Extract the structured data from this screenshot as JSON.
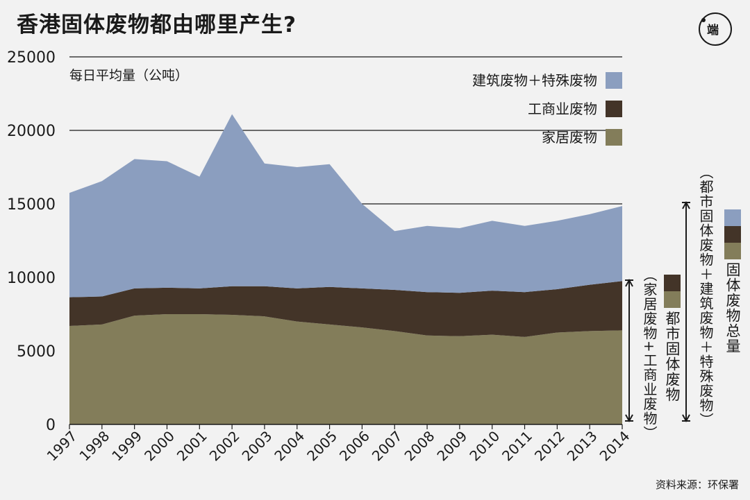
{
  "title": "香港固体废物都由哪里产生?",
  "logo_text": "端",
  "source": "资料来源：环保署",
  "colors": {
    "construction": "#8b9ebf",
    "industrial": "#433428",
    "household": "#837d5a",
    "background": "#f2f2f2",
    "text": "#1a1a1a"
  },
  "chart_data": {
    "type": "area",
    "stacked": true,
    "ylabel": "每日平均量（公吨）",
    "ylim": [
      0,
      25000
    ],
    "yticks": [
      "0",
      "5000",
      "10000",
      "15000",
      "20000",
      "25000"
    ],
    "x": [
      "1997",
      "1998",
      "1999",
      "2000",
      "2001",
      "2002",
      "2003",
      "2004",
      "2005",
      "2006",
      "2007",
      "2008",
      "2009",
      "2010",
      "2011",
      "2012",
      "2013",
      "2014"
    ],
    "legend_position": "top-right",
    "series": [
      {
        "name": "家居废物",
        "key": "household",
        "values": [
          6700,
          6800,
          7400,
          7500,
          7500,
          7450,
          7350,
          7000,
          6800,
          6600,
          6350,
          6050,
          6000,
          6100,
          5950,
          6250,
          6350,
          6400
        ]
      },
      {
        "name": "工商业废物",
        "key": "industrial",
        "values": [
          1950,
          1900,
          1850,
          1800,
          1750,
          1950,
          2050,
          2250,
          2550,
          2650,
          2800,
          2950,
          2950,
          3000,
          3050,
          2950,
          3150,
          3350
        ]
      },
      {
        "name": "建筑废物＋特殊废物",
        "key": "construction",
        "values": [
          7100,
          7850,
          8800,
          8600,
          7600,
          11700,
          8350,
          8250,
          8350,
          5750,
          4000,
          4500,
          4400,
          4750,
          4500,
          4650,
          4800,
          5100
        ]
      }
    ],
    "annotations": {
      "msw_group": {
        "label": "都市固体废物",
        "sublabel": "（家居废物+工商业废物）"
      },
      "total_group": {
        "label": "固体废物总量",
        "sublabel": "（都市固体废物＋建筑废物＋特殊废物）"
      }
    }
  }
}
